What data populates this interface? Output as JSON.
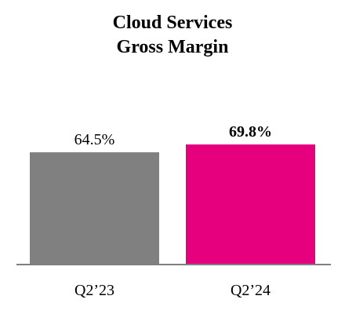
{
  "chart_data": {
    "type": "bar",
    "title": [
      "Cloud Services",
      "Gross Margin"
    ],
    "categories": [
      "Q2’23",
      "Q2’24"
    ],
    "values": [
      64.5,
      69.8
    ],
    "value_labels": [
      "64.5%",
      "69.8%"
    ],
    "value_label_bold": [
      false,
      true
    ],
    "colors": [
      "#808080",
      "#E6007E"
    ],
    "axis_color": "#7F7F7F",
    "xlabel": "",
    "ylabel": "",
    "grid": false
  }
}
